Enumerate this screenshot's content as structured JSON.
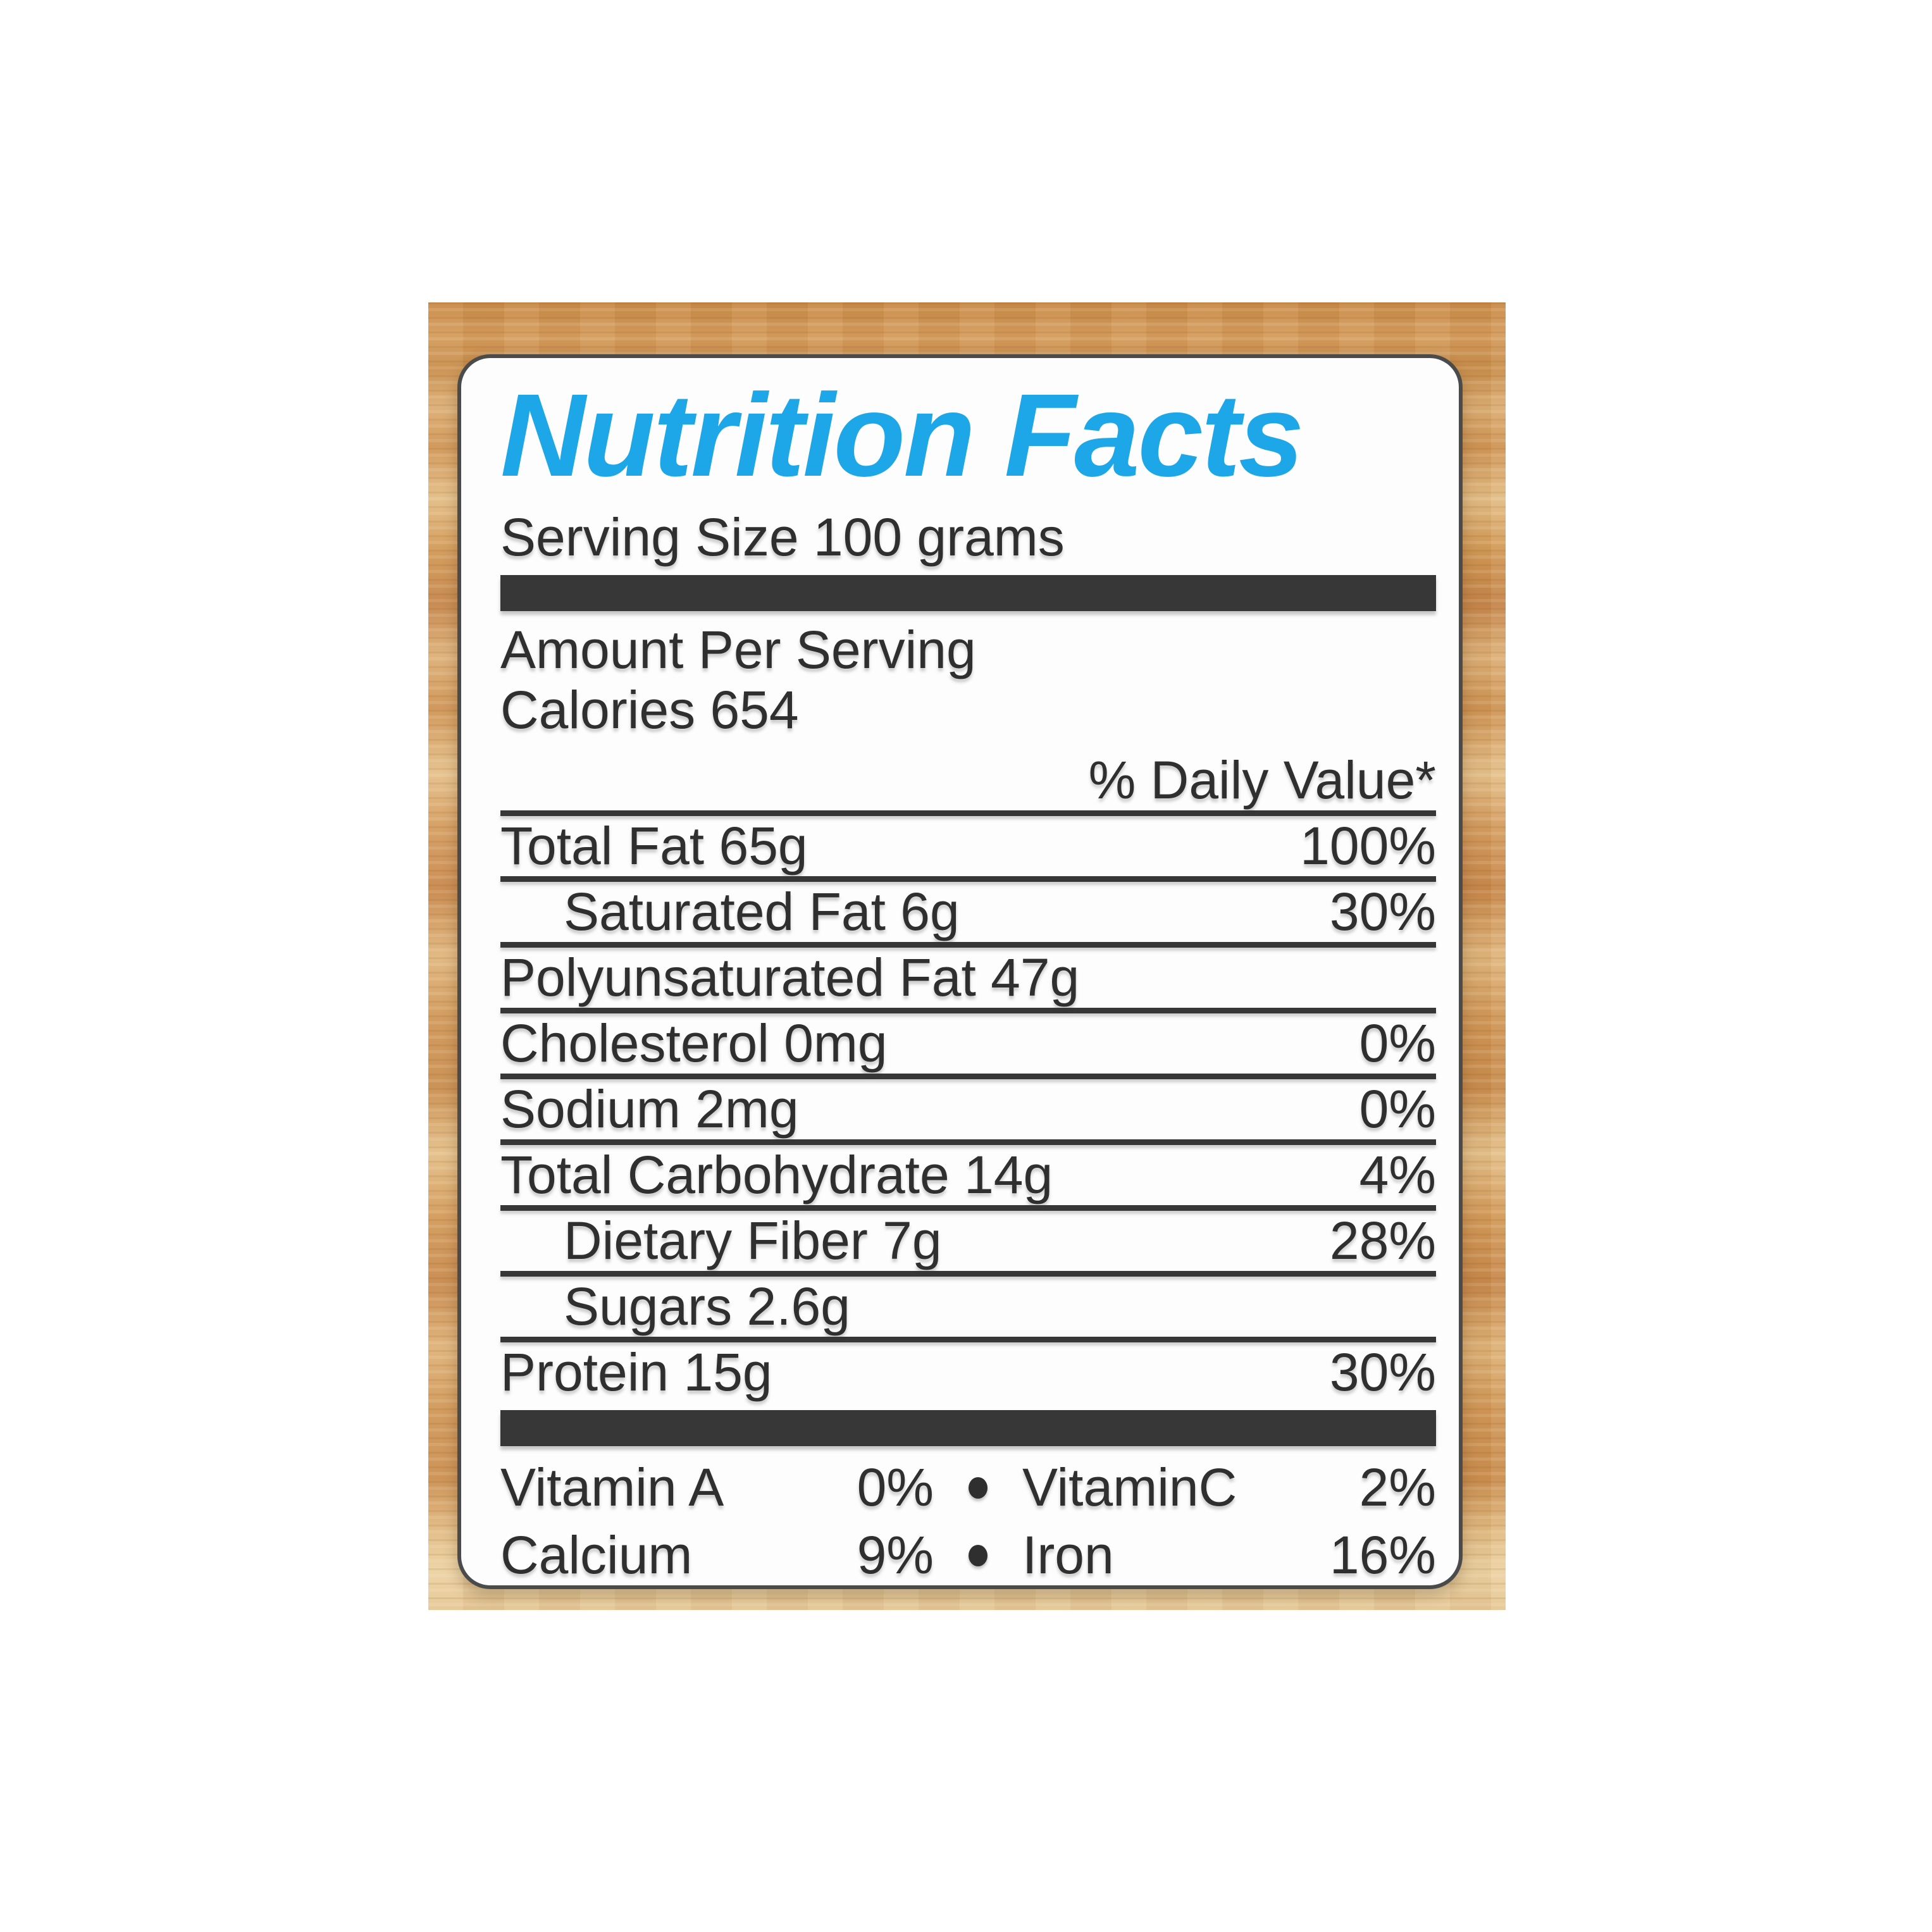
{
  "label": {
    "title": "Nutrition Facts",
    "serving_size": "Serving Size 100 grams",
    "amount_per_serving": "Amount Per Serving",
    "calories": {
      "label": "Calories",
      "value": "654"
    },
    "daily_value_header": "% Daily Value*",
    "nutrient_rows": [
      {
        "label": "Total Fat 65g",
        "value": "100%",
        "indent": false
      },
      {
        "label": "Saturated Fat 6g",
        "value": "30%",
        "indent": true
      },
      {
        "label": "Polyunsaturated Fat 47g",
        "value": "",
        "indent": false
      },
      {
        "label": "Cholesterol 0mg",
        "value": "0%",
        "indent": false
      },
      {
        "label": "Sodium 2mg",
        "value": "0%",
        "indent": false
      },
      {
        "label": "Total Carbohydrate 14g",
        "value": "4%",
        "indent": false
      },
      {
        "label": "Dietary Fiber 7g",
        "value": "28%",
        "indent": true
      },
      {
        "label": "Sugars 2.6g",
        "value": "",
        "indent": true
      },
      {
        "label": "Protein 15g",
        "value": "30%",
        "indent": false
      }
    ],
    "micronutrient_rows": [
      {
        "name": "Vitamin A",
        "pct": "0%",
        "name2": "VitaminC",
        "pct2": "2%"
      },
      {
        "name": "Calcium",
        "pct": "9%",
        "name2": "Iron",
        "pct2": "16%"
      }
    ],
    "icons": {
      "bullet": "circle-bullet-icon"
    },
    "colors": {
      "title_blue": "#1ea7e8",
      "rule_dark": "#373737",
      "text_dark": "#2f2f2f",
      "label_border": "#4b4b4b",
      "label_background": "#fdfdfd",
      "wood_base": "#d49c5f"
    }
  }
}
